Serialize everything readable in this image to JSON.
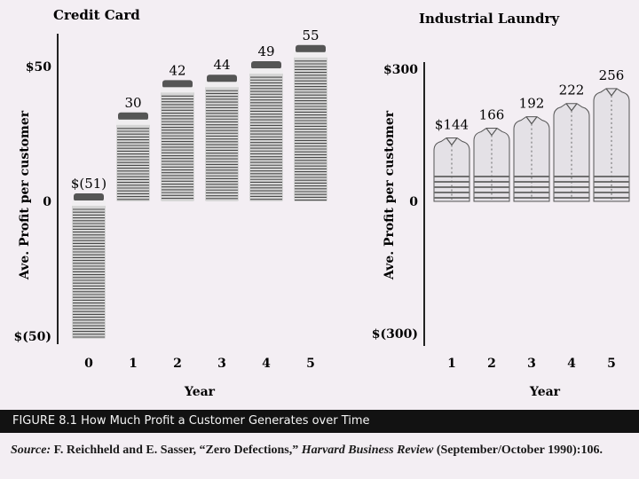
{
  "chart_data": [
    {
      "type": "bar",
      "title": "Credit Card",
      "xlabel": "Year",
      "ylabel": "Ave. Profit per customer",
      "categories": [
        "0",
        "1",
        "2",
        "3",
        "4",
        "5"
      ],
      "values": [
        -51,
        30,
        42,
        44,
        49,
        55
      ],
      "value_labels": [
        "$(51)",
        "30",
        "42",
        "44",
        "49",
        "55"
      ],
      "y_ticks": [
        "$50",
        "0",
        "$(50)"
      ],
      "y_tick_values": [
        50,
        0,
        -50
      ],
      "ylim": [
        -50,
        50
      ]
    },
    {
      "type": "bar",
      "title": "Industrial Laundry",
      "xlabel": "Year",
      "ylabel": "Ave. Profit per customer",
      "categories": [
        "1",
        "2",
        "3",
        "4",
        "5"
      ],
      "values": [
        144,
        166,
        192,
        222,
        256
      ],
      "value_labels": [
        "$144",
        "166",
        "192",
        "222",
        "256"
      ],
      "y_ticks": [
        "$300",
        "0",
        "$(300)"
      ],
      "y_tick_values": [
        300,
        0,
        -300
      ],
      "ylim": [
        -300,
        300
      ]
    }
  ],
  "caption": "FIGURE 8.1  How Much Profit a Customer Generates over Time",
  "source": {
    "lead": "Source:",
    "authors": " F. Reichheld and E. Sasser, “Zero Defections,” ",
    "journal": "Harvard Business Review",
    "rest": " (September/October 1990):106."
  },
  "colors": {
    "card_body": "#d6d6d6",
    "card_stripe": "#4a4a4a",
    "card_top": "#555555",
    "shirt_body": "#e4e1e6",
    "shirt_stripe": "#707070"
  }
}
